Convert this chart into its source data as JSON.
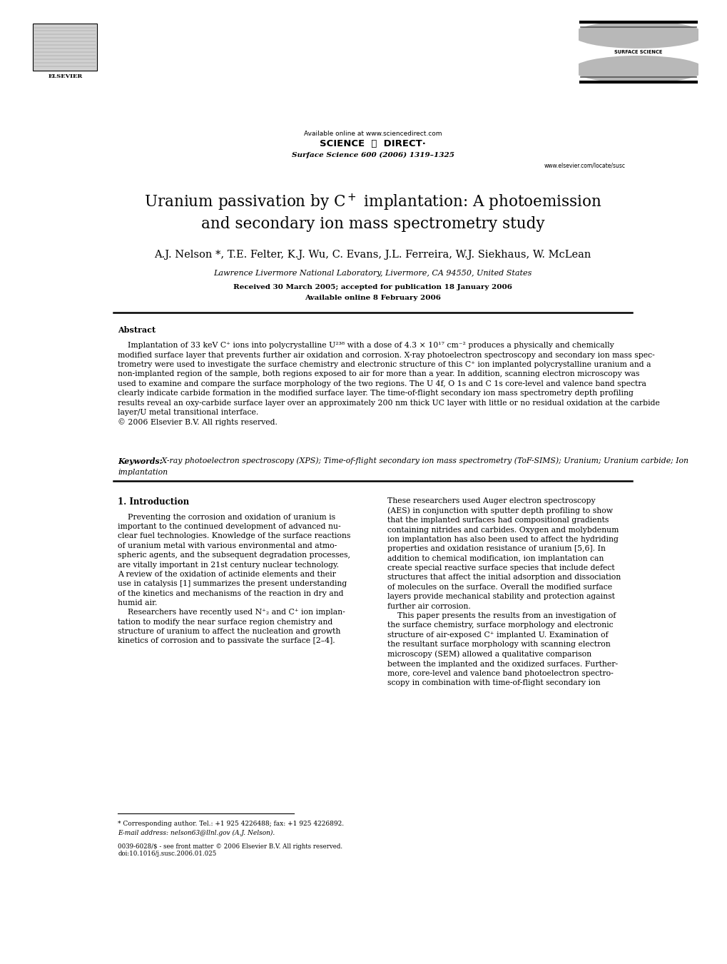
{
  "background_color": "#ffffff",
  "page_width": 10.2,
  "page_height": 13.51,
  "header_available_online": "Available online at www.sciencedirect.com",
  "header_journal": "Surface Science 600 (2006) 1319–1325",
  "header_website": "www.elsevier.com/locate/susc",
  "title_line1": "Uranium passivation by C$^+$ implantation: A photoemission",
  "title_line2": "and secondary ion mass spectrometry study",
  "authors": "A.J. Nelson *, T.E. Felter, K.J. Wu, C. Evans, J.L. Ferreira, W.J. Siekhaus, W. McLean",
  "affiliation": "Lawrence Livermore National Laboratory, Livermore, CA 94550, United States",
  "received": "Received 30 March 2005; accepted for publication 18 January 2006",
  "available_online_date": "Available online 8 February 2006",
  "abstract_header": "Abstract",
  "abstract_text1": "    Implantation of 33 keV C⁺ ions into polycrystalline U²³⁸ with a dose of 4.3 × 10¹⁷ cm⁻² produces a physically and chemically",
  "abstract_text2": "modified surface layer that prevents further air oxidation and corrosion. X-ray photoelectron spectroscopy and secondary ion mass spec-",
  "abstract_text3": "trometry were used to investigate the surface chemistry and electronic structure of this C⁺ ion implanted polycrystalline uranium and a",
  "abstract_text4": "non-implanted region of the sample, both regions exposed to air for more than a year. In addition, scanning electron microscopy was",
  "abstract_text5": "used to examine and compare the surface morphology of the two regions. The U 4f, O 1s and C 1s core-level and valence band spectra",
  "abstract_text6": "clearly indicate carbide formation in the modified surface layer. The time-of-flight secondary ion mass spectrometry depth profiling",
  "abstract_text7": "results reveal an oxy-carbide surface layer over an approximately 200 nm thick UC layer with little or no residual oxidation at the carbide",
  "abstract_text8": "layer/U metal transitional interface.",
  "abstract_copyright": "© 2006 Elsevier B.V. All rights reserved.",
  "keywords_label": "Keywords:",
  "keywords_text": " X-ray photoelectron spectroscopy (XPS); Time-of-flight secondary ion mass spectrometry (ToF-SIMS); Uranium; Uranium carbide; Ion",
  "keywords_text2": "implantation",
  "section1_header": "1. Introduction",
  "col1_body": "    Preventing the corrosion and oxidation of uranium is\nimportant to the continued development of advanced nu-\nclear fuel technologies. Knowledge of the surface reactions\nof uranium metal with various environmental and atmo-\nspheric agents, and the subsequent degradation processes,\nare vitally important in 21st century nuclear technology.\nA review of the oxidation of actinide elements and their\nuse in catalysis [1] summarizes the present understanding\nof the kinetics and mechanisms of the reaction in dry and\nhumid air.\n    Researchers have recently used N⁺₂ and C⁺ ion implan-\ntation to modify the near surface region chemistry and\nstructure of uranium to affect the nucleation and growth\nkinetics of corrosion and to passivate the surface [2–4].",
  "col2_body": "These researchers used Auger electron spectroscopy\n(AES) in conjunction with sputter depth profiling to show\nthat the implanted surfaces had compositional gradients\ncontaining nitrides and carbides. Oxygen and molybdenum\nion implantation has also been used to affect the hydriding\nproperties and oxidation resistance of uranium [5,6]. In\naddition to chemical modification, ion implantation can\ncreate special reactive surface species that include defect\nstructures that affect the initial adsorption and dissociation\nof molecules on the surface. Overall the modified surface\nlayers provide mechanical stability and protection against\nfurther air corrosion.\n    This paper presents the results from an investigation of\nthe surface chemistry, surface morphology and electronic\nstructure of air-exposed C⁺ implanted U. Examination of\nthe resultant surface morphology with scanning electron\nmicroscopy (SEM) allowed a qualitative comparison\nbetween the implanted and the oxidized surfaces. Further-\nmore, core-level and valence band photoelectron spectro-\nscopy in combination with time-of-flight secondary ion",
  "footnote_star": "* Corresponding author. Tel.: +1 925 4226488; fax: +1 925 4226892.",
  "footnote_email": "E-mail address: nelson63@llnl.gov (A.J. Nelson).",
  "footer_issn": "0039-6028/$ - see front matter © 2006 Elsevier B.V. All rights reserved.",
  "footer_doi": "doi:10.1016/j.susc.2006.01.025"
}
